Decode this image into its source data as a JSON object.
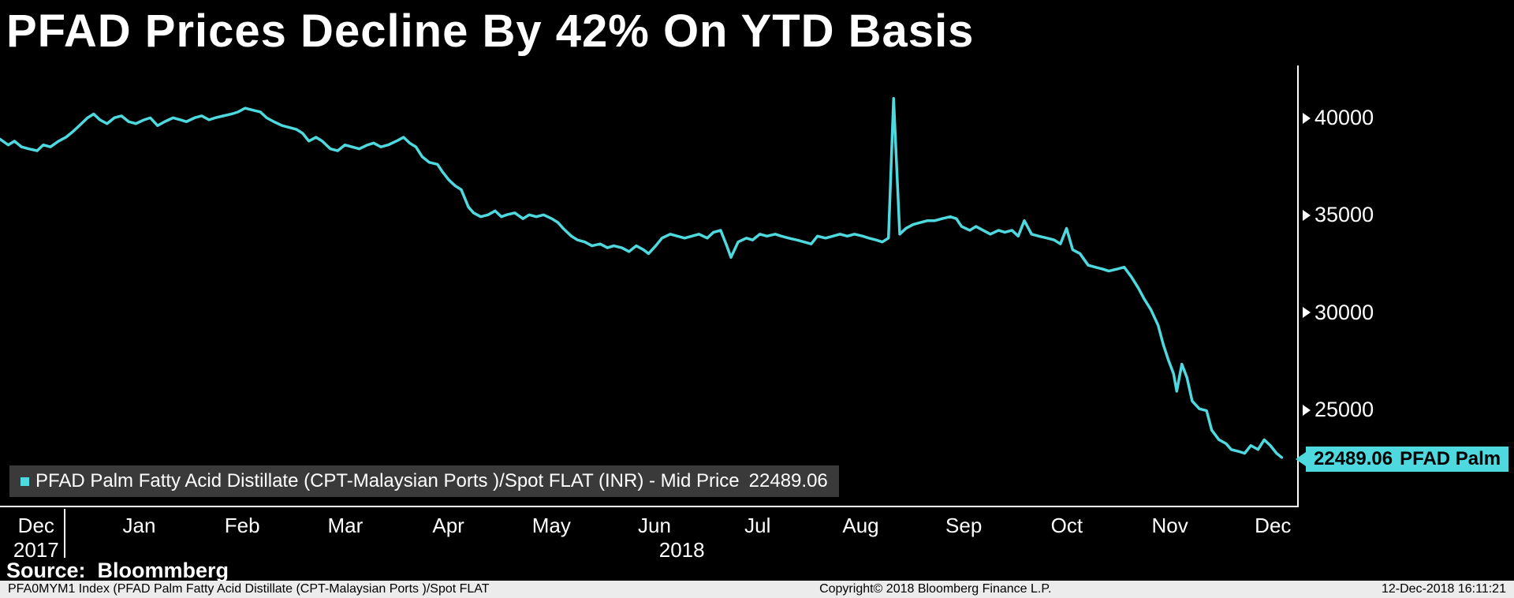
{
  "title": "PFAD Prices Decline By 42% On YTD Basis",
  "colors": {
    "background": "#000000",
    "line": "#4ED9DF",
    "axis": "#FFFFFF",
    "text": "#FFFFFF",
    "callout_bg": "#4ED9DF",
    "callout_text": "#000000",
    "legend_bg": "#3A3A3A",
    "statusbar_bg": "#ECECEC"
  },
  "legend": {
    "label": "PFAD Palm Fatty Acid Distillate (CPT-Malaysian Ports )/Spot FLAT (INR) - Mid Price",
    "value": "22489.06"
  },
  "price_callout": {
    "value": "22489.06",
    "name": "PFAD Palm"
  },
  "source_line": "Source:  Bloommberg",
  "statusbar": {
    "left": "PFA0MYM1 Index (PFAD Palm Fatty Acid Distillate (CPT-Malaysian Ports )/Spot FLAT",
    "center": "Copyright© 2018 Bloomberg Finance L.P.",
    "right": "12-Dec-2018 16:11:21"
  },
  "chart_data": {
    "type": "line",
    "title": "PFAD Prices Decline By 42% On YTD Basis",
    "series_name": "PFAD Palm Fatty Acid Distillate (CPT-Malaysian Ports )/Spot FLAT (INR) - Mid Price",
    "last_price": 22489.06,
    "x_axis": {
      "labels": [
        "Dec",
        "Jan",
        "Feb",
        "Mar",
        "Apr",
        "May",
        "Jun",
        "Jul",
        "Aug",
        "Sep",
        "Oct",
        "Nov",
        "Dec"
      ],
      "year_left": "2017",
      "year_center": "2018",
      "range_months": [
        0,
        12.6
      ]
    },
    "y_axis": {
      "ticks": [
        25000,
        30000,
        35000,
        40000
      ],
      "range": [
        20000,
        42700
      ]
    },
    "grid": false,
    "legend_position": "bottom-left",
    "points": [
      [
        0.0,
        38900
      ],
      [
        0.08,
        38600
      ],
      [
        0.14,
        38800
      ],
      [
        0.21,
        38500
      ],
      [
        0.28,
        38400
      ],
      [
        0.36,
        38300
      ],
      [
        0.42,
        38600
      ],
      [
        0.49,
        38500
      ],
      [
        0.57,
        38800
      ],
      [
        0.64,
        39000
      ],
      [
        0.71,
        39300
      ],
      [
        0.77,
        39600
      ],
      [
        0.85,
        40000
      ],
      [
        0.91,
        40200
      ],
      [
        0.97,
        39900
      ],
      [
        1.04,
        39700
      ],
      [
        1.11,
        40000
      ],
      [
        1.18,
        40100
      ],
      [
        1.25,
        39800
      ],
      [
        1.32,
        39700
      ],
      [
        1.4,
        39900
      ],
      [
        1.46,
        40000
      ],
      [
        1.53,
        39600
      ],
      [
        1.6,
        39800
      ],
      [
        1.68,
        40000
      ],
      [
        1.75,
        39900
      ],
      [
        1.81,
        39800
      ],
      [
        1.89,
        40000
      ],
      [
        1.96,
        40100
      ],
      [
        2.03,
        39900
      ],
      [
        2.09,
        40000
      ],
      [
        2.17,
        40100
      ],
      [
        2.25,
        40200
      ],
      [
        2.31,
        40300
      ],
      [
        2.38,
        40500
      ],
      [
        2.45,
        40400
      ],
      [
        2.53,
        40300
      ],
      [
        2.59,
        40000
      ],
      [
        2.66,
        39800
      ],
      [
        2.74,
        39600
      ],
      [
        2.81,
        39500
      ],
      [
        2.88,
        39400
      ],
      [
        2.94,
        39200
      ],
      [
        3.0,
        38800
      ],
      [
        3.07,
        39000
      ],
      [
        3.13,
        38800
      ],
      [
        3.21,
        38400
      ],
      [
        3.28,
        38300
      ],
      [
        3.35,
        38600
      ],
      [
        3.42,
        38500
      ],
      [
        3.49,
        38400
      ],
      [
        3.57,
        38600
      ],
      [
        3.63,
        38700
      ],
      [
        3.7,
        38500
      ],
      [
        3.77,
        38600
      ],
      [
        3.85,
        38800
      ],
      [
        3.92,
        39000
      ],
      [
        3.98,
        38700
      ],
      [
        4.04,
        38500
      ],
      [
        4.1,
        38000
      ],
      [
        4.17,
        37700
      ],
      [
        4.25,
        37600
      ],
      [
        4.3,
        37200
      ],
      [
        4.36,
        36800
      ],
      [
        4.42,
        36500
      ],
      [
        4.48,
        36300
      ],
      [
        4.55,
        35400
      ],
      [
        4.6,
        35100
      ],
      [
        4.67,
        34900
      ],
      [
        4.74,
        35000
      ],
      [
        4.81,
        35200
      ],
      [
        4.87,
        34900
      ],
      [
        4.92,
        35000
      ],
      [
        5.0,
        35100
      ],
      [
        5.08,
        34800
      ],
      [
        5.14,
        35000
      ],
      [
        5.21,
        34900
      ],
      [
        5.28,
        35000
      ],
      [
        5.36,
        34800
      ],
      [
        5.42,
        34600
      ],
      [
        5.47,
        34300
      ],
      [
        5.55,
        33900
      ],
      [
        5.61,
        33700
      ],
      [
        5.68,
        33600
      ],
      [
        5.75,
        33400
      ],
      [
        5.83,
        33500
      ],
      [
        5.9,
        33300
      ],
      [
        5.96,
        33400
      ],
      [
        6.04,
        33300
      ],
      [
        6.11,
        33100
      ],
      [
        6.18,
        33400
      ],
      [
        6.25,
        33200
      ],
      [
        6.3,
        33000
      ],
      [
        6.37,
        33400
      ],
      [
        6.43,
        33800
      ],
      [
        6.51,
        34000
      ],
      [
        6.58,
        33900
      ],
      [
        6.65,
        33800
      ],
      [
        6.72,
        33900
      ],
      [
        6.79,
        34000
      ],
      [
        6.87,
        33800
      ],
      [
        6.93,
        34100
      ],
      [
        7.0,
        34200
      ],
      [
        7.06,
        33400
      ],
      [
        7.1,
        32800
      ],
      [
        7.17,
        33600
      ],
      [
        7.25,
        33800
      ],
      [
        7.31,
        33700
      ],
      [
        7.38,
        34000
      ],
      [
        7.45,
        33900
      ],
      [
        7.53,
        34000
      ],
      [
        7.59,
        33900
      ],
      [
        7.66,
        33800
      ],
      [
        7.74,
        33700
      ],
      [
        7.81,
        33600
      ],
      [
        7.88,
        33500
      ],
      [
        7.94,
        33900
      ],
      [
        8.02,
        33800
      ],
      [
        8.09,
        33900
      ],
      [
        8.16,
        34000
      ],
      [
        8.23,
        33900
      ],
      [
        8.3,
        34000
      ],
      [
        8.38,
        33900
      ],
      [
        8.44,
        33800
      ],
      [
        8.51,
        33700
      ],
      [
        8.57,
        33600
      ],
      [
        8.63,
        33800
      ],
      [
        8.68,
        41000
      ],
      [
        8.74,
        34000
      ],
      [
        8.8,
        34300
      ],
      [
        8.87,
        34500
      ],
      [
        8.94,
        34600
      ],
      [
        9.01,
        34700
      ],
      [
        9.08,
        34700
      ],
      [
        9.15,
        34800
      ],
      [
        9.23,
        34900
      ],
      [
        9.29,
        34800
      ],
      [
        9.34,
        34400
      ],
      [
        9.42,
        34200
      ],
      [
        9.48,
        34400
      ],
      [
        9.55,
        34200
      ],
      [
        9.62,
        34000
      ],
      [
        9.7,
        34200
      ],
      [
        9.76,
        34100
      ],
      [
        9.83,
        34200
      ],
      [
        9.89,
        33900
      ],
      [
        9.95,
        34700
      ],
      [
        10.02,
        34000
      ],
      [
        10.09,
        33900
      ],
      [
        10.17,
        33800
      ],
      [
        10.24,
        33700
      ],
      [
        10.3,
        33500
      ],
      [
        10.36,
        34300
      ],
      [
        10.42,
        33200
      ],
      [
        10.49,
        33000
      ],
      [
        10.57,
        32400
      ],
      [
        10.64,
        32300
      ],
      [
        10.71,
        32200
      ],
      [
        10.77,
        32100
      ],
      [
        10.85,
        32200
      ],
      [
        10.92,
        32300
      ],
      [
        10.99,
        31800
      ],
      [
        11.06,
        31200
      ],
      [
        11.11,
        30700
      ],
      [
        11.18,
        30100
      ],
      [
        11.25,
        29300
      ],
      [
        11.3,
        28300
      ],
      [
        11.35,
        27500
      ],
      [
        11.4,
        26800
      ],
      [
        11.43,
        25900
      ],
      [
        11.48,
        27300
      ],
      [
        11.53,
        26600
      ],
      [
        11.58,
        25400
      ],
      [
        11.65,
        25000
      ],
      [
        11.72,
        24900
      ],
      [
        11.77,
        23900
      ],
      [
        11.84,
        23400
      ],
      [
        11.91,
        23200
      ],
      [
        11.96,
        22900
      ],
      [
        12.03,
        22800
      ],
      [
        12.09,
        22700
      ],
      [
        12.15,
        23100
      ],
      [
        12.22,
        22900
      ],
      [
        12.28,
        23400
      ],
      [
        12.34,
        23100
      ],
      [
        12.4,
        22700
      ],
      [
        12.45,
        22489.06
      ]
    ]
  }
}
